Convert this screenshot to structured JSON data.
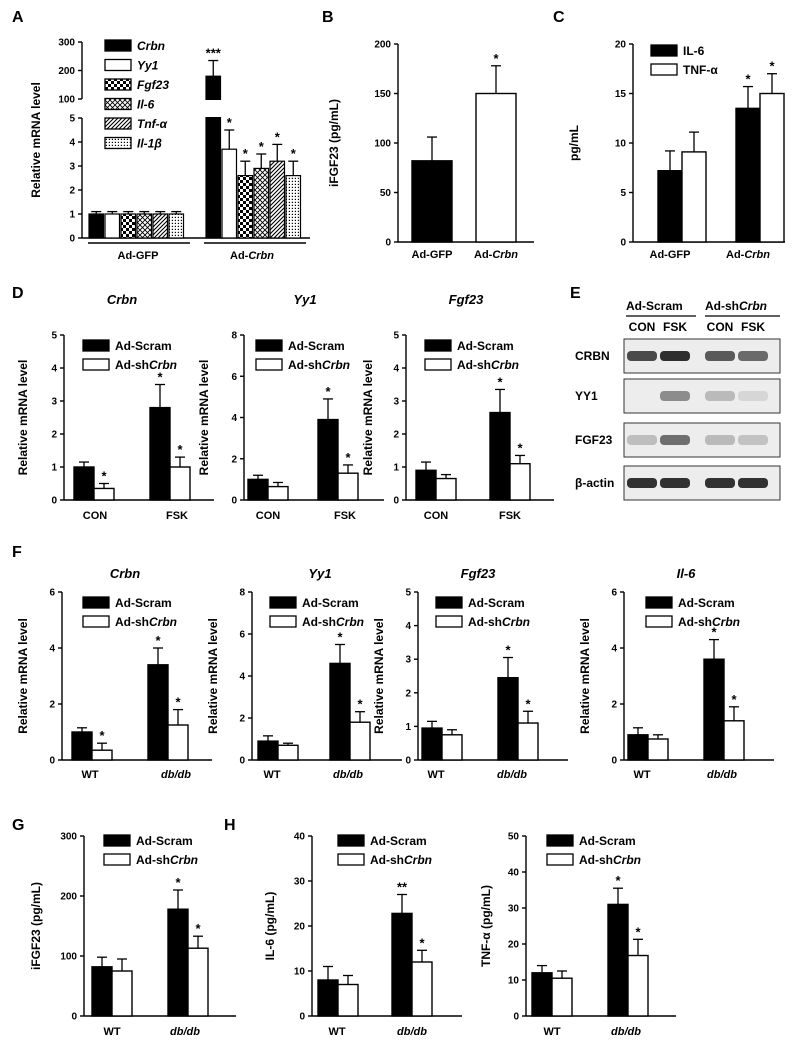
{
  "panels": {
    "A": "A",
    "B": "B",
    "C": "C",
    "D": "D",
    "E": "E",
    "F": "F",
    "G": "G",
    "H": "H"
  },
  "western_blot": {
    "groups": [
      "Ad-Scram",
      "Ad-shCrbn"
    ],
    "lanes": [
      "CON",
      "FSK",
      "CON",
      "FSK"
    ],
    "rows": [
      {
        "name": "CRBN",
        "intensity": [
          0.78,
          0.92,
          0.7,
          0.62
        ]
      },
      {
        "name": "YY1",
        "intensity": [
          0.0,
          0.45,
          0.22,
          0.08
        ]
      },
      {
        "name": "FGF23",
        "intensity": [
          0.2,
          0.6,
          0.22,
          0.18
        ]
      },
      {
        "name": "β-actin",
        "intensity": [
          0.9,
          0.9,
          0.9,
          0.9
        ]
      }
    ]
  },
  "chart_data": [
    {
      "id": "A",
      "type": "bar",
      "title": "",
      "ylabel": "Relative mRNA level",
      "categories": [
        "Ad-GFP",
        "Ad-Crbn"
      ],
      "broken_axis": true,
      "series": [
        {
          "name": "Crbn",
          "pattern": "solid",
          "values": [
            1,
            180
          ],
          "errors": [
            0.1,
            55
          ],
          "sig": [
            "",
            "***"
          ]
        },
        {
          "name": "Yy1",
          "pattern": "open",
          "values": [
            1,
            3.7
          ],
          "errors": [
            0.1,
            0.8
          ],
          "sig": [
            "",
            "*"
          ]
        },
        {
          "name": "Fgf23",
          "pattern": "check",
          "values": [
            1,
            2.6
          ],
          "errors": [
            0.1,
            0.6
          ],
          "sig": [
            "",
            "*"
          ]
        },
        {
          "name": "Il-6",
          "pattern": "cross",
          "values": [
            1,
            2.9
          ],
          "errors": [
            0.1,
            0.6
          ],
          "sig": [
            "",
            "*"
          ]
        },
        {
          "name": "Tnf-α",
          "pattern": "diag",
          "values": [
            1,
            3.2
          ],
          "errors": [
            0.1,
            0.7
          ],
          "sig": [
            "",
            "*"
          ]
        },
        {
          "name": "Il-1β",
          "pattern": "dots",
          "values": [
            1,
            2.6
          ],
          "errors": [
            0.1,
            0.6
          ],
          "sig": [
            "",
            "*"
          ]
        }
      ],
      "yticks": [
        "0",
        "1",
        "2",
        "3",
        "4",
        "5",
        "100",
        "200",
        "300"
      ]
    },
    {
      "id": "B",
      "type": "bar",
      "ylabel": "iFGF23 (pg/mL)",
      "ylim": [
        0,
        200
      ],
      "yticks": [
        0,
        50,
        100,
        150,
        200
      ],
      "categories": [
        "Ad-GFP",
        "Ad-Crbn"
      ],
      "series": [
        {
          "name": "Ad-GFP",
          "pattern": "solid",
          "values": [
            82,
            null
          ],
          "errors": [
            24,
            null
          ],
          "sig": [
            "",
            ""
          ]
        },
        {
          "name": "Ad-Crbn",
          "pattern": "open",
          "values": [
            null,
            150
          ],
          "errors": [
            null,
            28
          ],
          "sig": [
            "",
            "*"
          ]
        }
      ]
    },
    {
      "id": "C",
      "type": "bar",
      "ylabel": "pg/mL",
      "ylim": [
        0,
        20
      ],
      "yticks": [
        0,
        5,
        10,
        15,
        20
      ],
      "categories": [
        "Ad-GFP",
        "Ad-Crbn"
      ],
      "series": [
        {
          "name": "IL-6",
          "pattern": "solid",
          "values": [
            7.2,
            13.5
          ],
          "errors": [
            2.0,
            2.2
          ],
          "sig": [
            "",
            "*"
          ]
        },
        {
          "name": "TNF-α",
          "pattern": "open",
          "values": [
            9.1,
            15.0
          ],
          "errors": [
            2.0,
            2.0
          ],
          "sig": [
            "",
            "*"
          ]
        }
      ]
    },
    {
      "id": "D1",
      "type": "bar",
      "title": "Crbn",
      "ylabel": "Relative mRNA level",
      "ylim": [
        0,
        5
      ],
      "yticks": [
        0,
        1,
        2,
        3,
        4,
        5
      ],
      "categories": [
        "CON",
        "FSK"
      ],
      "series": [
        {
          "name": "Ad-Scram",
          "pattern": "solid",
          "values": [
            1.0,
            2.8
          ],
          "errors": [
            0.15,
            0.7
          ],
          "sig": [
            "",
            "*"
          ]
        },
        {
          "name": "Ad-shCrbn",
          "pattern": "open",
          "values": [
            0.35,
            1.0
          ],
          "errors": [
            0.15,
            0.3
          ],
          "sig": [
            "*",
            "*"
          ]
        }
      ]
    },
    {
      "id": "D2",
      "type": "bar",
      "title": "Yy1",
      "ylabel": "Relative mRNA level",
      "ylim": [
        0,
        8
      ],
      "yticks": [
        0,
        2,
        4,
        6,
        8
      ],
      "categories": [
        "CON",
        "FSK"
      ],
      "series": [
        {
          "name": "Ad-Scram",
          "pattern": "solid",
          "values": [
            1.0,
            3.9
          ],
          "errors": [
            0.2,
            1.0
          ],
          "sig": [
            "",
            "*"
          ]
        },
        {
          "name": "Ad-shCrbn",
          "pattern": "open",
          "values": [
            0.65,
            1.3
          ],
          "errors": [
            0.2,
            0.4
          ],
          "sig": [
            "",
            "*"
          ]
        }
      ]
    },
    {
      "id": "D3",
      "type": "bar",
      "title": "Fgf23",
      "ylabel": "Relative mRNA level",
      "ylim": [
        0,
        5
      ],
      "yticks": [
        0,
        1,
        2,
        3,
        4,
        5
      ],
      "categories": [
        "CON",
        "FSK"
      ],
      "series": [
        {
          "name": "Ad-Scram",
          "pattern": "solid",
          "values": [
            0.9,
            2.65
          ],
          "errors": [
            0.25,
            0.7
          ],
          "sig": [
            "",
            "*"
          ]
        },
        {
          "name": "Ad-shCrbn",
          "pattern": "open",
          "values": [
            0.65,
            1.1
          ],
          "errors": [
            0.12,
            0.25
          ],
          "sig": [
            "",
            "*"
          ]
        }
      ]
    },
    {
      "id": "F1",
      "type": "bar",
      "title": "Crbn",
      "ylabel": "Relative mRNA level",
      "ylim": [
        0,
        6
      ],
      "yticks": [
        0,
        2,
        4,
        6
      ],
      "categories": [
        "WT",
        "db/db"
      ],
      "series": [
        {
          "name": "Ad-Scram",
          "pattern": "solid",
          "values": [
            1.0,
            3.4
          ],
          "errors": [
            0.15,
            0.6
          ],
          "sig": [
            "",
            "*"
          ]
        },
        {
          "name": "Ad-shCrbn",
          "pattern": "open",
          "values": [
            0.35,
            1.25
          ],
          "errors": [
            0.25,
            0.55
          ],
          "sig": [
            "*",
            "*"
          ]
        }
      ]
    },
    {
      "id": "F2",
      "type": "bar",
      "title": "Yy1",
      "ylabel": "Relative mRNA level",
      "ylim": [
        0,
        8
      ],
      "yticks": [
        0,
        2,
        4,
        6,
        8
      ],
      "categories": [
        "WT",
        "db/db"
      ],
      "series": [
        {
          "name": "Ad-Scram",
          "pattern": "solid",
          "values": [
            0.9,
            4.6
          ],
          "errors": [
            0.25,
            0.9
          ],
          "sig": [
            "",
            "*"
          ]
        },
        {
          "name": "Ad-shCrbn",
          "pattern": "open",
          "values": [
            0.7,
            1.8
          ],
          "errors": [
            0.1,
            0.5
          ],
          "sig": [
            "",
            "*"
          ]
        }
      ]
    },
    {
      "id": "F3",
      "type": "bar",
      "title": "Fgf23",
      "ylabel": "Relative mRNA level",
      "ylim": [
        0,
        5
      ],
      "yticks": [
        0,
        1,
        2,
        3,
        4,
        5
      ],
      "categories": [
        "WT",
        "db/db"
      ],
      "series": [
        {
          "name": "Ad-Scram",
          "pattern": "solid",
          "values": [
            0.95,
            2.45
          ],
          "errors": [
            0.2,
            0.6
          ],
          "sig": [
            "",
            "*"
          ]
        },
        {
          "name": "Ad-shCrbn",
          "pattern": "open",
          "values": [
            0.75,
            1.1
          ],
          "errors": [
            0.15,
            0.35
          ],
          "sig": [
            "",
            "*"
          ]
        }
      ]
    },
    {
      "id": "F4",
      "type": "bar",
      "title": "Il-6",
      "ylabel": "Relative mRNA level",
      "ylim": [
        0,
        6
      ],
      "yticks": [
        0,
        2,
        4,
        6
      ],
      "categories": [
        "WT",
        "db/db"
      ],
      "series": [
        {
          "name": "Ad-Scram",
          "pattern": "solid",
          "values": [
            0.9,
            3.6
          ],
          "errors": [
            0.25,
            0.7
          ],
          "sig": [
            "",
            "*"
          ]
        },
        {
          "name": "Ad-shCrbn",
          "pattern": "open",
          "values": [
            0.75,
            1.4
          ],
          "errors": [
            0.15,
            0.5
          ],
          "sig": [
            "",
            "*"
          ]
        }
      ]
    },
    {
      "id": "G",
      "type": "bar",
      "ylabel": "iFGF23 (pg/mL)",
      "ylim": [
        0,
        300
      ],
      "yticks": [
        0,
        100,
        200,
        300
      ],
      "categories": [
        "WT",
        "db/db"
      ],
      "series": [
        {
          "name": "Ad-Scram",
          "pattern": "solid",
          "values": [
            82,
            178
          ],
          "errors": [
            16,
            32
          ],
          "sig": [
            "",
            "*"
          ]
        },
        {
          "name": "Ad-shCrbn",
          "pattern": "open",
          "values": [
            75,
            113
          ],
          "errors": [
            20,
            20
          ],
          "sig": [
            "",
            "*"
          ]
        }
      ]
    },
    {
      "id": "H1",
      "type": "bar",
      "ylabel": "IL-6 (pg/mL)",
      "ylim": [
        0,
        40
      ],
      "yticks": [
        0,
        10,
        20,
        30,
        40
      ],
      "categories": [
        "WT",
        "db/db"
      ],
      "series": [
        {
          "name": "Ad-Scram",
          "pattern": "solid",
          "values": [
            8,
            22.8
          ],
          "errors": [
            3,
            4.2
          ],
          "sig": [
            "",
            "**"
          ]
        },
        {
          "name": "Ad-shCrbn",
          "pattern": "open",
          "values": [
            7,
            12
          ],
          "errors": [
            2,
            2.6
          ],
          "sig": [
            "",
            "*"
          ]
        }
      ]
    },
    {
      "id": "H2",
      "type": "bar",
      "ylabel": "TNF-α (pg/mL)",
      "ylim": [
        0,
        50
      ],
      "yticks": [
        0,
        10,
        20,
        30,
        40,
        50
      ],
      "categories": [
        "WT",
        "db/db"
      ],
      "series": [
        {
          "name": "Ad-Scram",
          "pattern": "solid",
          "values": [
            12,
            31
          ],
          "errors": [
            2,
            4.5
          ],
          "sig": [
            "",
            "*"
          ]
        },
        {
          "name": "Ad-shCrbn",
          "pattern": "open",
          "values": [
            10.5,
            16.8
          ],
          "errors": [
            2,
            4.5
          ],
          "sig": [
            "",
            "*"
          ]
        }
      ]
    }
  ]
}
